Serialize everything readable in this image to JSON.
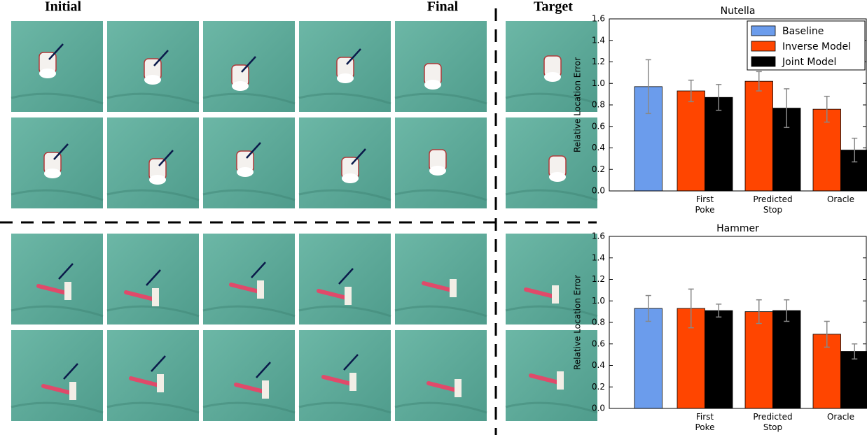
{
  "panel_labels": {
    "initial": "Initial",
    "final": "Final",
    "target": "Target"
  },
  "chart_data": [
    {
      "type": "bar",
      "title": "Nutella",
      "y_label": "Relative Location Error",
      "categories": [
        null,
        "First\nPoke",
        "Predicted\nStop",
        "Oracle"
      ],
      "series": [
        {
          "name": "Baseline",
          "color": "#6b9cec",
          "values": [
            0.97,
            null,
            null,
            null
          ],
          "errors": [
            0.25,
            null,
            null,
            null
          ]
        },
        {
          "name": "Inverse Model",
          "color": "#ff4500",
          "values": [
            null,
            0.93,
            1.02,
            0.76
          ],
          "errors": [
            null,
            0.1,
            0.09,
            0.12
          ]
        },
        {
          "name": "Joint Model",
          "color": "#000000",
          "values": [
            null,
            0.87,
            0.77,
            0.38
          ],
          "errors": [
            null,
            0.12,
            0.18,
            0.11
          ]
        }
      ],
      "error_color": "#888888",
      "ylim": [
        0,
        1.6
      ],
      "yticks": [
        {
          "value": 0,
          "label": "0.0"
        },
        {
          "value": 0.2,
          "label": "0.2"
        },
        {
          "value": 0.4,
          "label": "0.4"
        },
        {
          "value": 0.6,
          "label": "0.6"
        },
        {
          "value": 0.8,
          "label": "0.8"
        },
        {
          "value": 1.0,
          "label": "1.0"
        },
        {
          "value": 1.2,
          "label": "1.2"
        },
        {
          "value": 1.4,
          "label": "1.4"
        },
        {
          "value": 1.6,
          "label": "1.6"
        }
      ],
      "legend": "upper right"
    },
    {
      "type": "bar",
      "title": "Hammer",
      "y_label": "Relative Location Error",
      "categories": [
        null,
        "First\nPoke",
        "Predicted\nStop",
        "Oracle"
      ],
      "series": [
        {
          "name": "Baseline",
          "color": "#6b9cec",
          "values": [
            0.93,
            null,
            null,
            null
          ],
          "errors": [
            0.12,
            null,
            null,
            null
          ]
        },
        {
          "name": "Inverse Model",
          "color": "#ff4500",
          "values": [
            null,
            0.93,
            0.9,
            0.69
          ],
          "errors": [
            null,
            0.18,
            0.11,
            0.12
          ]
        },
        {
          "name": "Joint Model",
          "color": "#000000",
          "values": [
            null,
            0.91,
            0.91,
            0.53
          ],
          "errors": [
            null,
            0.06,
            0.1,
            0.07
          ]
        }
      ],
      "error_color": "#888888",
      "ylim": [
        0,
        1.6
      ],
      "yticks": [
        {
          "value": 0,
          "label": "0.0"
        },
        {
          "value": 0.2,
          "label": "0.2"
        },
        {
          "value": 0.4,
          "label": "0.4"
        },
        {
          "value": 0.6,
          "label": "0.6"
        },
        {
          "value": 0.8,
          "label": "0.8"
        },
        {
          "value": 1.0,
          "label": "1.0"
        },
        {
          "value": 1.2,
          "label": "1.2"
        },
        {
          "value": 1.4,
          "label": "1.4"
        },
        {
          "value": 1.6,
          "label": "1.6"
        }
      ],
      "legend": false
    }
  ]
}
